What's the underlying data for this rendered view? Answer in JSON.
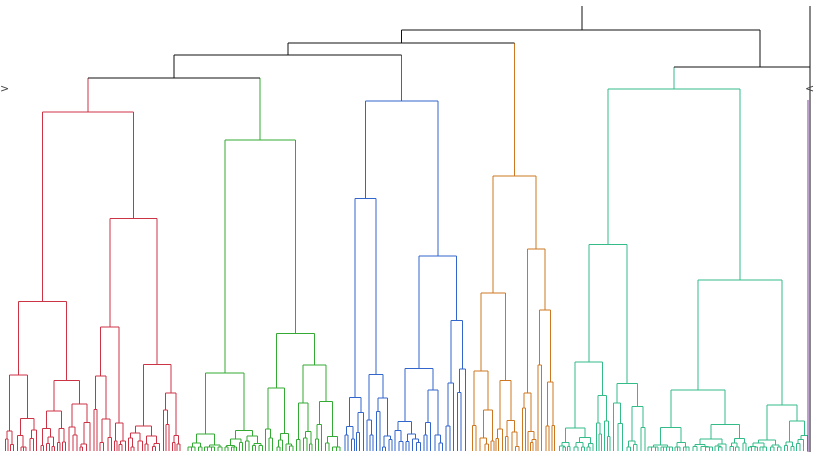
{
  "view": {
    "type": "dendrogram",
    "orientation": "top-down",
    "root_color": "#111111",
    "handles": {
      "left_glyph": ">",
      "right_glyph": "<"
    },
    "edge_marker_color": "#7b3fa0"
  },
  "clusters": [
    {
      "name": "red",
      "color": "#cc3344",
      "leaves": 52
    },
    {
      "name": "green",
      "color": "#33aa33",
      "leaves": 48
    },
    {
      "name": "blue",
      "color": "#3366cc",
      "leaves": 36
    },
    {
      "name": "orange",
      "color": "#cc7722",
      "leaves": 26
    },
    {
      "name": "teal",
      "color": "#33bb88",
      "leaves": 72
    }
  ]
}
